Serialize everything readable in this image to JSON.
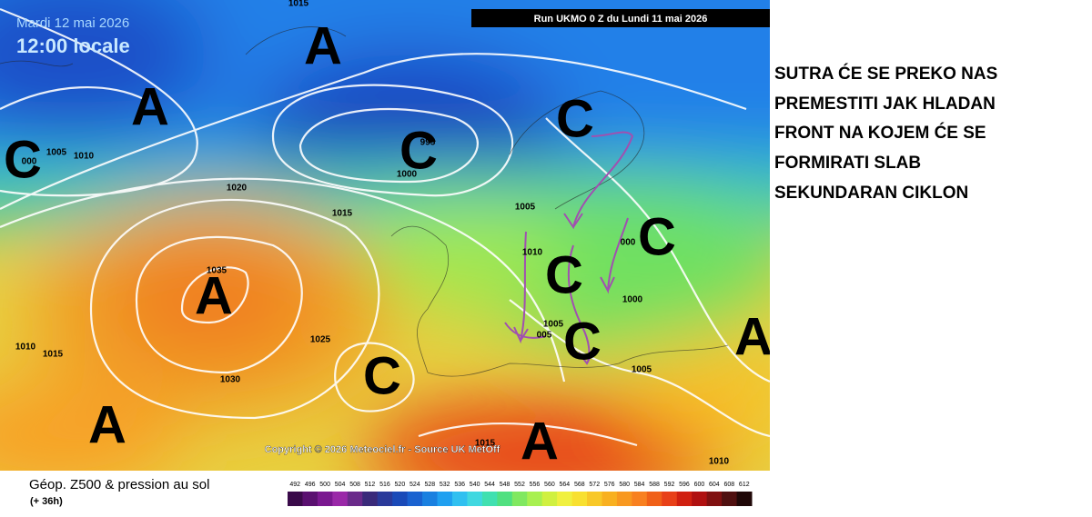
{
  "header": {
    "date": "Mardi 12 mai 2026",
    "time": "12:00 locale",
    "run": "Run UKMO 0 Z du Lundi 11 mai 2026"
  },
  "map": {
    "copyright": "Copyright © 2026 Meteociel.fr - Source UK MetOff",
    "centers": [
      "A",
      "A",
      "C",
      "C",
      "C",
      "C",
      "C",
      "C",
      "A",
      "A",
      "C",
      "A",
      "A"
    ],
    "isobar_labels": [
      "1015",
      "1005",
      "1010",
      "000",
      "1020",
      "1015",
      "995",
      "1000",
      "1005",
      "1010",
      "000",
      "1000",
      "1035",
      "1025",
      "1030",
      "1010",
      "1015",
      "1005",
      "005",
      "1005",
      "1015",
      "1010"
    ]
  },
  "legend": {
    "title": "Géop. Z500 & pression au sol",
    "lead": "(+ 36h)",
    "ticks": [
      "492",
      "496",
      "500",
      "504",
      "508",
      "512",
      "516",
      "520",
      "524",
      "528",
      "532",
      "536",
      "540",
      "544",
      "548",
      "552",
      "556",
      "560",
      "564",
      "568",
      "572",
      "576",
      "580",
      "584",
      "588",
      "592",
      "596",
      "600",
      "604",
      "608",
      "612"
    ],
    "colors": [
      "#3a0a4a",
      "#5a1070",
      "#7a1890",
      "#9a28a8",
      "#6a2a8a",
      "#3a2a7a",
      "#2a3a9a",
      "#1a4ab8",
      "#1a62d0",
      "#1a80e0",
      "#20a0f0",
      "#30c0f0",
      "#40d8e0",
      "#40e0b0",
      "#50e080",
      "#80e860",
      "#a8f050",
      "#d0f040",
      "#f0f040",
      "#f8e030",
      "#f8c828",
      "#f8b020",
      "#f89820",
      "#f88020",
      "#f06018",
      "#e84018",
      "#d02010",
      "#b01010",
      "#801010",
      "#501010",
      "#200808"
    ]
  },
  "note": {
    "lines": [
      "SUTRA ĆE SE PREKO NAS",
      "PREMESTITI JAK HLADAN",
      "FRONT NA KOJEM ĆE SE",
      "FORMIRATI SLAB",
      "SEKUNDARAN CIKLON"
    ]
  }
}
